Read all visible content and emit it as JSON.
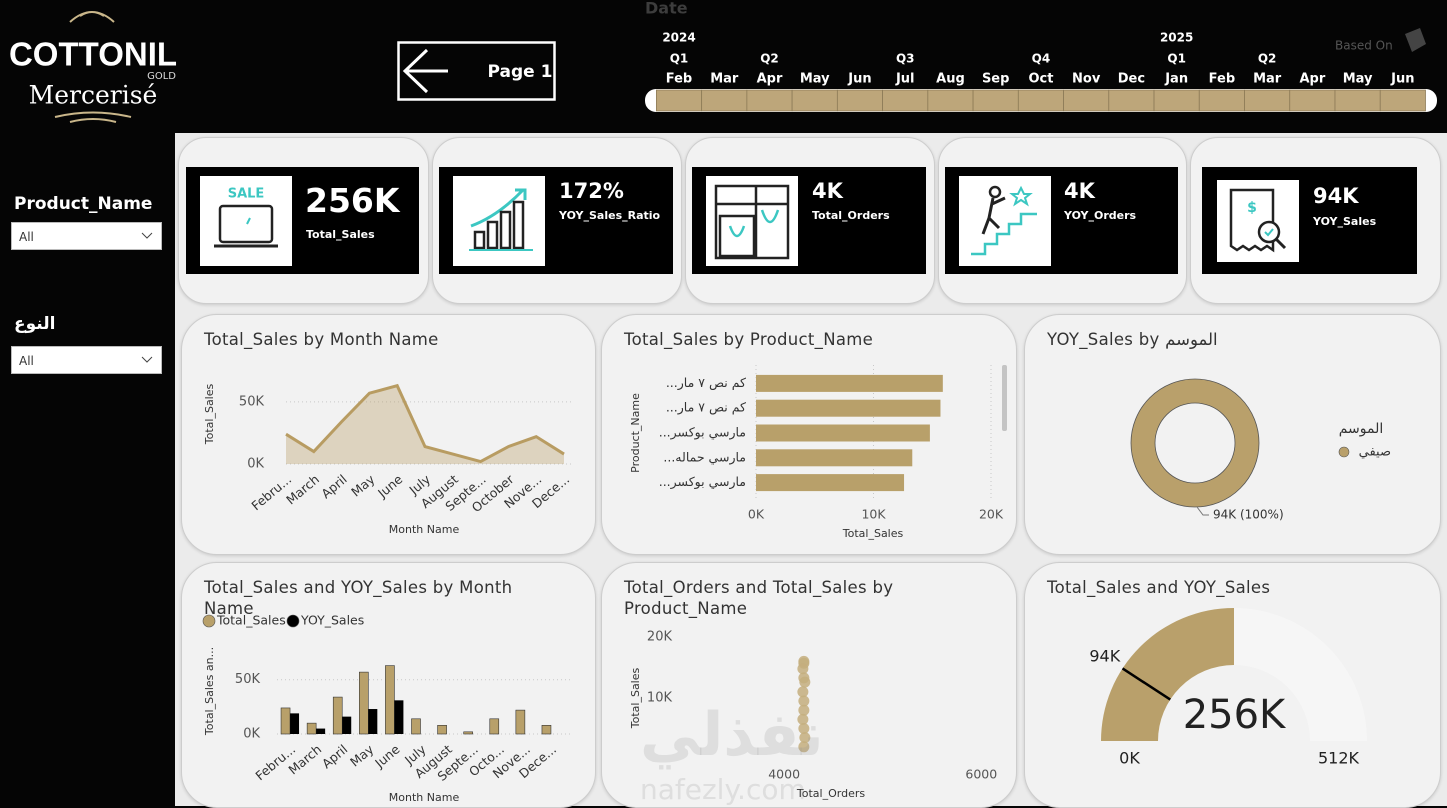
{
  "header": {
    "logo": {
      "brand": "COTTONIL",
      "tier": "GOLD",
      "line": "Mercerisé"
    },
    "page_button": "Page 1",
    "based_on": "Based On"
  },
  "date_slicer": {
    "title": "Date",
    "years": [
      "2024",
      null,
      null,
      null,
      null,
      null,
      null,
      null,
      null,
      null,
      null,
      "2025",
      null,
      null,
      null,
      null,
      null
    ],
    "quarters": [
      "Q1",
      null,
      "Q2",
      null,
      null,
      "Q3",
      null,
      null,
      "Q4",
      null,
      null,
      "Q1",
      null,
      "Q2",
      null,
      null,
      null
    ],
    "months": [
      "Feb",
      "Mar",
      "Apr",
      "May",
      "Jun",
      "Jul",
      "Aug",
      "Sep",
      "Oct",
      "Nov",
      "Dec",
      "Jan",
      "Feb",
      "Mar",
      "Apr",
      "May",
      "Jun"
    ]
  },
  "slicers": [
    {
      "title": "Product_Name",
      "value": "All"
    },
    {
      "title": "النوع",
      "value": "All"
    }
  ],
  "kpis": [
    {
      "value": "256K",
      "label": "Total_Sales"
    },
    {
      "value": "172%",
      "label": "YOY_Sales_Ratio"
    },
    {
      "value": "4K",
      "label": "Total_Orders"
    },
    {
      "value": "4K",
      "label": "YOY_Orders"
    },
    {
      "value": "94K",
      "label": "YOY_Sales"
    }
  ],
  "chart_data": [
    {
      "type": "area",
      "title": "Total_Sales by Month Name",
      "categories": [
        "Febru...",
        "March",
        "April",
        "May",
        "June",
        "July",
        "August",
        "Septe...",
        "October",
        "Nove...",
        "Dece..."
      ],
      "values": [
        24000,
        10000,
        34000,
        57000,
        63000,
        14000,
        8000,
        2000,
        14000,
        22000,
        8000
      ],
      "color": "#b89c62",
      "x_label": "Month Name",
      "y_label": "Total_Sales",
      "ylim": [
        0,
        70000
      ],
      "yticks": [
        {
          "value": 0,
          "label": "0K"
        },
        {
          "value": 50000,
          "label": "50K"
        }
      ],
      "grid": true
    },
    {
      "type": "hbar",
      "title": "Total_Sales by Product_Name",
      "categories": [
        "كم نص ٧ مار...",
        "كم نص ٧ مار...",
        "مارسي بوكسر...",
        "مارسي حماله...",
        "مارسي بوكسر..."
      ],
      "values": [
        15900,
        15700,
        14800,
        13300,
        12600
      ],
      "color": "#b8a06a",
      "x_label": "Total_Sales",
      "y_label": "Product_Name",
      "xlim": [
        0,
        20000
      ],
      "xticks": [
        {
          "value": 0,
          "label": "0K"
        },
        {
          "value": 10000,
          "label": "10K"
        },
        {
          "value": 20000,
          "label": "20K"
        }
      ],
      "grid": true
    },
    {
      "type": "donut",
      "title": "YOY_Sales by الموسم",
      "legend_title": "الموسم",
      "categories": [
        "صيفي"
      ],
      "values": [
        94000
      ],
      "value_labels": [
        "94K (100%)"
      ],
      "colors": [
        "#b9a06b"
      ]
    },
    {
      "type": "grouped_bar",
      "title": "Total_Sales and YOY_Sales by Month Name",
      "categories": [
        "Febru...",
        "March",
        "April",
        "May",
        "June",
        "July",
        "August",
        "Septe...",
        "Octo...",
        "Nove...",
        "Dece..."
      ],
      "series": [
        {
          "name": "Total_Sales",
          "color": "#b8a06a",
          "values": [
            24000,
            10000,
            34000,
            57000,
            63000,
            14000,
            8000,
            2000,
            14000,
            22000,
            8000
          ]
        },
        {
          "name": "YOY_Sales",
          "color": "#000000",
          "values": [
            19000,
            5000,
            16000,
            23000,
            31000,
            null,
            null,
            null,
            null,
            null,
            null
          ]
        }
      ],
      "x_label": "Month Name",
      "y_label": "Total_Sales an...",
      "ylim": [
        0,
        70000
      ],
      "yticks": [
        {
          "value": 0,
          "label": "0K"
        },
        {
          "value": 50000,
          "label": "50K"
        }
      ],
      "grid": true
    },
    {
      "type": "scatter",
      "title": "Total_Orders and Total_Sales by Product_Name",
      "x": [
        4200,
        4200,
        4190,
        4200,
        4210,
        4190,
        4200,
        4200,
        4190,
        4200,
        4210,
        4200
      ],
      "values": [
        16000,
        15700,
        14800,
        13300,
        12600,
        11000,
        9500,
        8000,
        6500,
        5000,
        3500,
        2000
      ],
      "color": "#c4ae7e",
      "x_label": "Total_Orders",
      "y_label": "Total_Sales",
      "xlim": [
        2700,
        6200
      ],
      "xticks": [
        4000,
        6000
      ],
      "ylim": [
        0,
        20000
      ],
      "yticks": [
        {
          "value": 10000,
          "label": "10K"
        },
        {
          "value": 20000,
          "label": "20K"
        }
      ]
    },
    {
      "type": "gauge",
      "title": "Total_Sales and YOY_Sales",
      "values": [
        256000
      ],
      "value_labels": [
        "256K"
      ],
      "color": "#b9a06b",
      "ylim": [
        0,
        512000
      ],
      "yticks": [
        {
          "value": 0,
          "label": "0K"
        },
        {
          "value": 512000,
          "label": "512K"
        }
      ],
      "target": 94000,
      "target_label": "94K"
    }
  ],
  "watermark": {
    "arabic": "نفذلي",
    "latin": "nafezly.com"
  }
}
